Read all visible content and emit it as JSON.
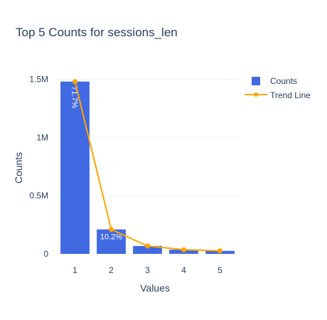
{
  "chart_data": {
    "type": "bar",
    "title": "Top 5 Counts for sessions_len",
    "xlabel": "Values",
    "ylabel": "Counts",
    "categories": [
      "1",
      "2",
      "3",
      "4",
      "5"
    ],
    "ylim": [
      0,
      1570000
    ],
    "yticks": [
      {
        "value": 0,
        "label": "0"
      },
      {
        "value": 500000,
        "label": "0.5M"
      },
      {
        "value": 1000000,
        "label": "1M"
      },
      {
        "value": 1500000,
        "label": "1.5M"
      }
    ],
    "grid": true,
    "legend_position": "top-right",
    "series": [
      {
        "name": "Counts",
        "type": "bar",
        "color": "#4169e1",
        "values": [
          1480000,
          210000,
          68000,
          36000,
          26000
        ],
        "labels": [
          "71.7%",
          "10.2%",
          "",
          "",
          ""
        ]
      },
      {
        "name": "Trend Line",
        "type": "line",
        "color": "#ffa500",
        "values": [
          1480000,
          210000,
          68000,
          36000,
          26000
        ]
      }
    ]
  }
}
